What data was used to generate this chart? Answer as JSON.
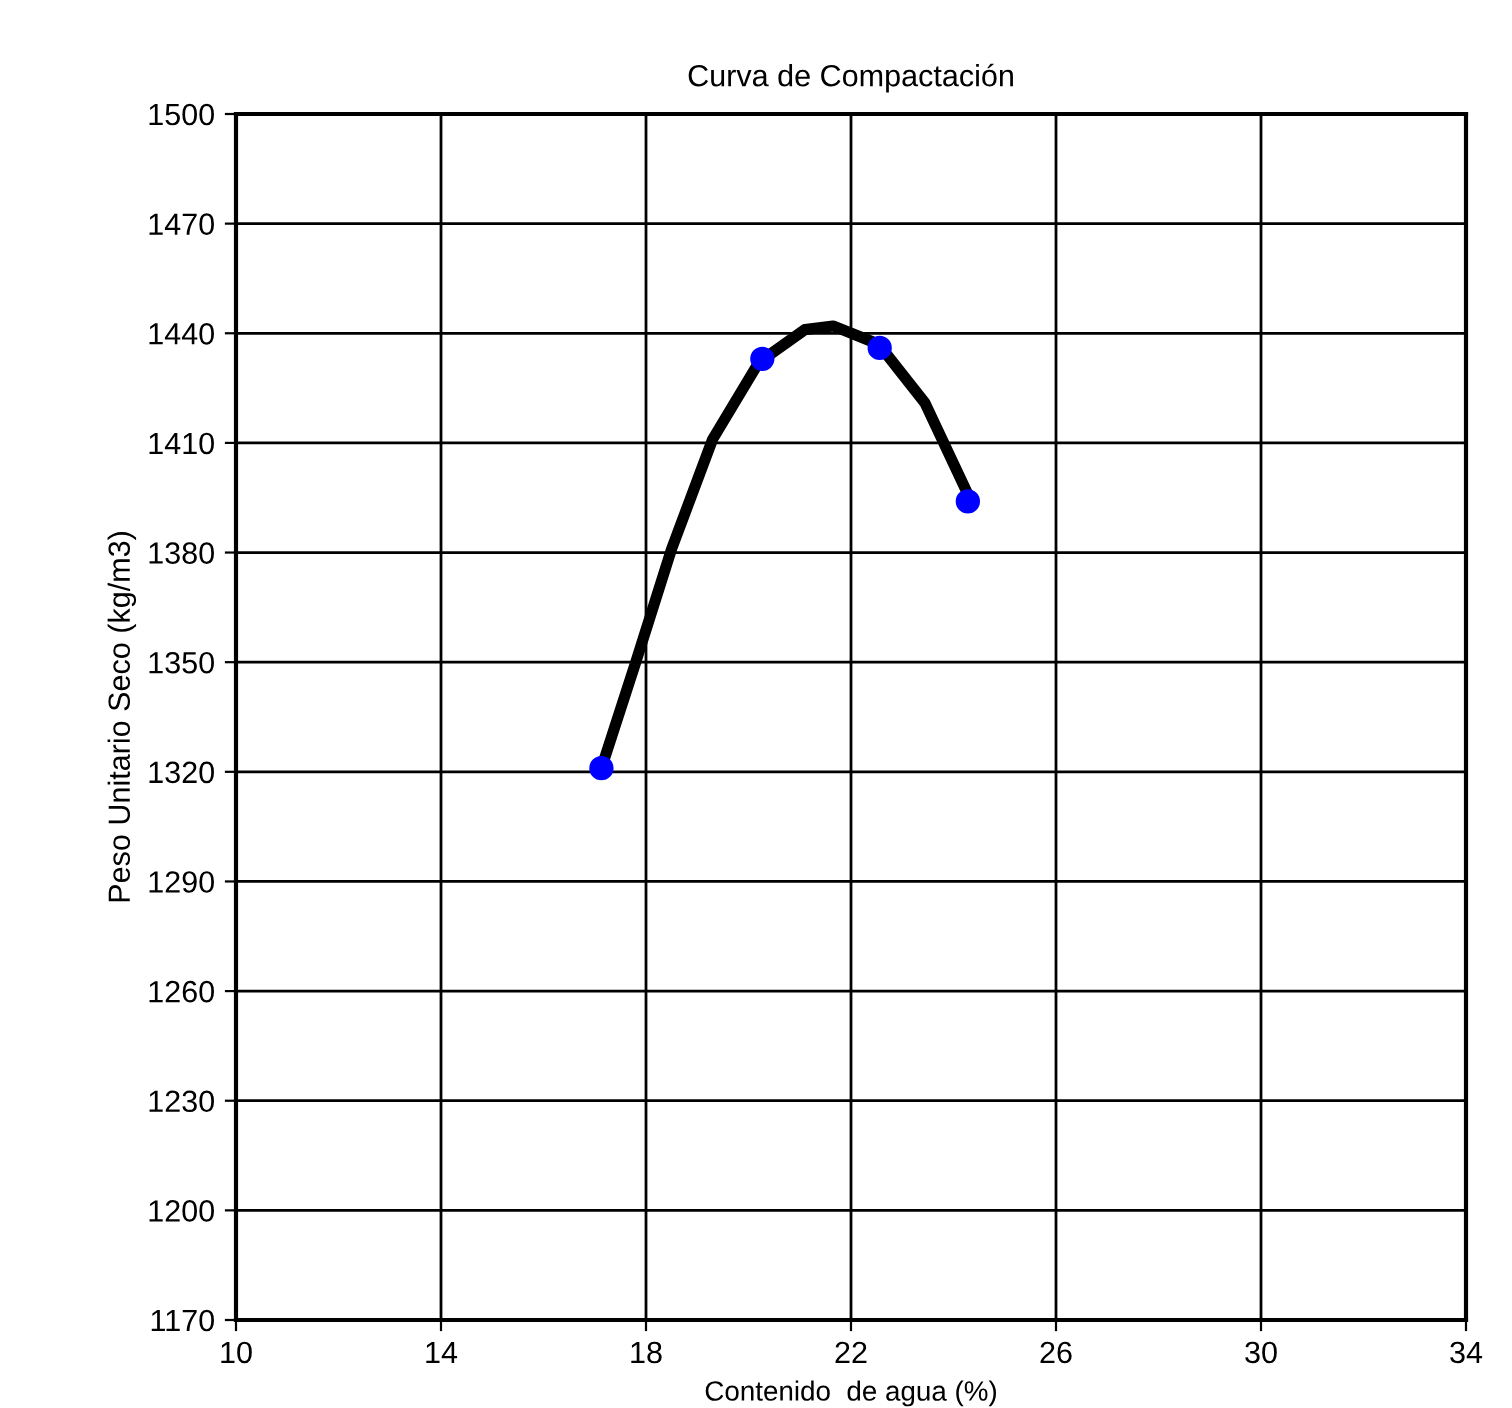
{
  "chart_data": {
    "type": "scatter",
    "title": "Curva de Compactación",
    "xlabel": "Contenido  de agua (%)",
    "ylabel": "Peso Unitario Seco (kg/m3)",
    "xlim": [
      10,
      34
    ],
    "xticks": [
      10,
      14,
      18,
      22,
      26,
      30,
      34
    ],
    "ylim": [
      1170,
      1500
    ],
    "yticks": [
      1170,
      1200,
      1230,
      1260,
      1290,
      1320,
      1350,
      1380,
      1410,
      1440,
      1470,
      1500
    ],
    "grid": true,
    "series": [
      {
        "type": "line",
        "color": "#000000",
        "marker": "none",
        "x": [
          17.13,
          17.8,
          18.5,
          19.3,
          20.2,
          21.1,
          21.65,
          22.54,
          23.44,
          24.28
        ],
        "values": [
          1321,
          1350,
          1381,
          1411,
          1432,
          1441,
          1442,
          1437,
          1421,
          1396
        ]
      },
      {
        "color": "#0000ff",
        "marker": "circle",
        "x": [
          17.13,
          20.27,
          22.56,
          24.28
        ],
        "values": [
          1321,
          1433,
          1436,
          1394
        ]
      }
    ]
  }
}
